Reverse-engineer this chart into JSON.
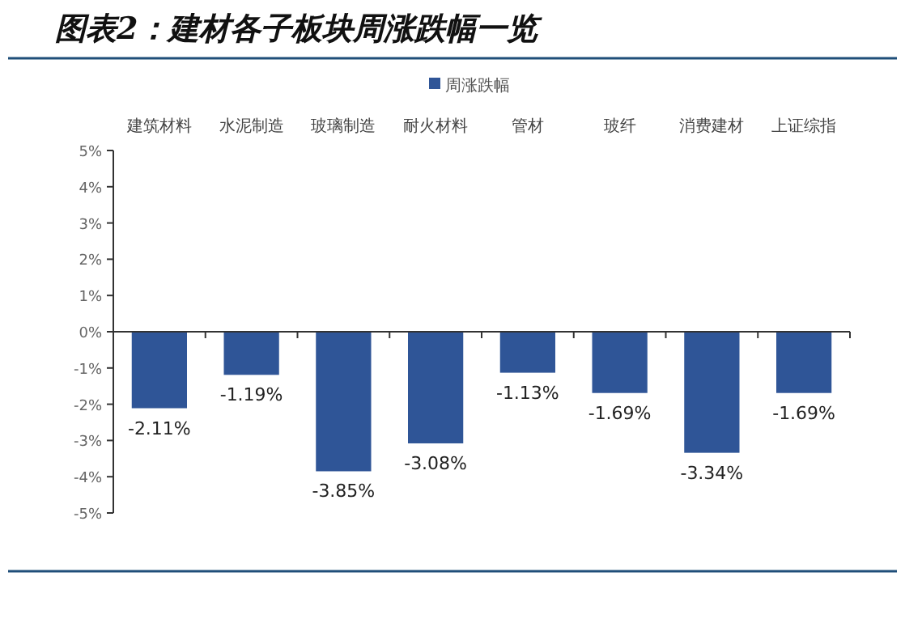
{
  "chart_data": {
    "type": "bar",
    "title": "图表2：建材各子板块周涨跌幅一览",
    "categories": [
      "建筑材料",
      "水泥制造",
      "玻璃制造",
      "耐火材料",
      "管材",
      "玻纤",
      "消费建材",
      "上证综指"
    ],
    "series": [
      {
        "name": "周涨跌幅",
        "color": "#2f5597",
        "values": [
          -2.11,
          -1.19,
          -3.85,
          -3.08,
          -1.13,
          -1.69,
          -3.34,
          -1.69
        ],
        "value_labels": [
          "-2.11%",
          "-1.19%",
          "-3.85%",
          "-3.08%",
          "-1.13%",
          "-1.69%",
          "-3.34%",
          "-1.69%"
        ]
      }
    ],
    "ylim": [
      -5,
      5
    ],
    "yticks": [
      {
        "value": -5,
        "label": "-5%"
      },
      {
        "value": -4,
        "label": "-4%"
      },
      {
        "value": -3,
        "label": "-3%"
      },
      {
        "value": -2,
        "label": "-2%"
      },
      {
        "value": -1,
        "label": "-1%"
      },
      {
        "value": 0,
        "label": "0%"
      },
      {
        "value": 1,
        "label": "1%"
      },
      {
        "value": 2,
        "label": "2%"
      },
      {
        "value": 3,
        "label": "3%"
      },
      {
        "value": 4,
        "label": "4%"
      },
      {
        "value": 5,
        "label": "5%"
      }
    ],
    "legend": "top"
  }
}
